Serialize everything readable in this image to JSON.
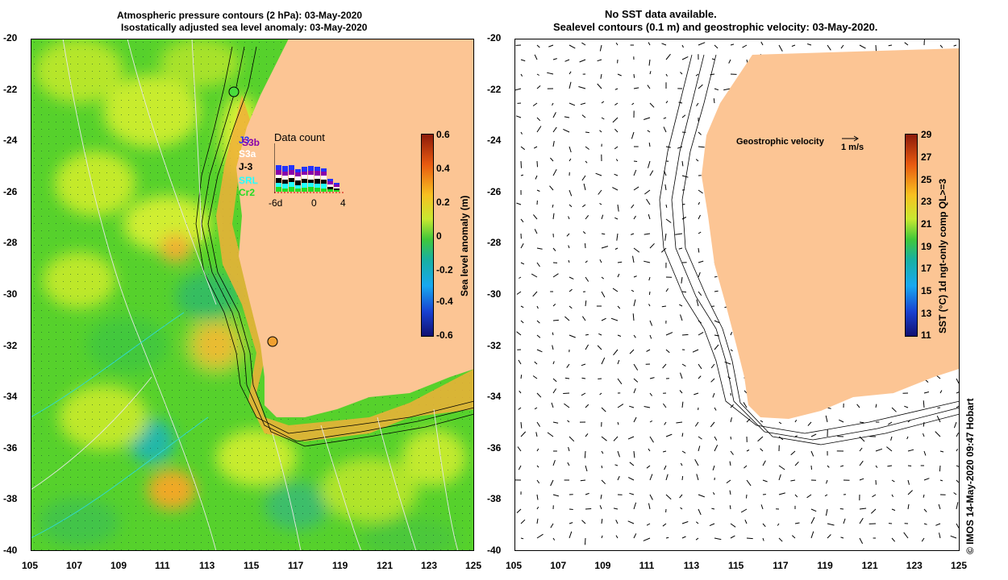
{
  "left_panel": {
    "title_line1": "Atmospheric pressure contours (2 hPa): 03-May-2020",
    "title_line2": "Isostatically adjusted sea level anomaly: 03-May-2020",
    "colorbar": {
      "title": "Sea level anomaly (m)",
      "ticks": [
        "0.6",
        "0.4",
        "0.2",
        "0",
        "-0.2",
        "-0.4",
        "-0.6"
      ]
    },
    "data_count": {
      "title": "Data count",
      "satellites": [
        "J3",
        "S3b",
        "S3a",
        "J-3",
        "SRL",
        "Cr2"
      ],
      "satellite_colors": [
        "#2233ff",
        "#8800aa",
        "#ffffff",
        "#000000",
        "#22ffff",
        "#22dd22"
      ],
      "x_ticks": [
        "-6d",
        "0",
        "4"
      ]
    }
  },
  "right_panel": {
    "title_line1": "No SST data available.",
    "title_line2": "Sealevel contours (0.1 m) and geostrophic velocity: 03-May-2020.",
    "velocity_key_label": "Geostrophic velocity",
    "velocity_key_scale": "1 m/s",
    "colorbar": {
      "title": "SST (°C) 1d ngt-only comp QL>=3",
      "ticks": [
        "29",
        "27",
        "25",
        "23",
        "21",
        "19",
        "17",
        "15",
        "13",
        "11"
      ]
    }
  },
  "axes": {
    "x_ticks": [
      "105",
      "107",
      "109",
      "111",
      "113",
      "115",
      "117",
      "119",
      "121",
      "123",
      "125"
    ],
    "y_ticks": [
      "-20",
      "-22",
      "-24",
      "-26",
      "-28",
      "-30",
      "-32",
      "-34",
      "-36",
      "-38",
      "-40"
    ]
  },
  "credit": "© IMOS 14-May-2020 09:47 Hobart",
  "colors": {
    "land": "#fcc594",
    "ocean_base": "#5cd62e",
    "ocean_light": "#b8ea2a",
    "anomaly_high": "#f08a20",
    "anomaly_low": "#20b8a8"
  }
}
